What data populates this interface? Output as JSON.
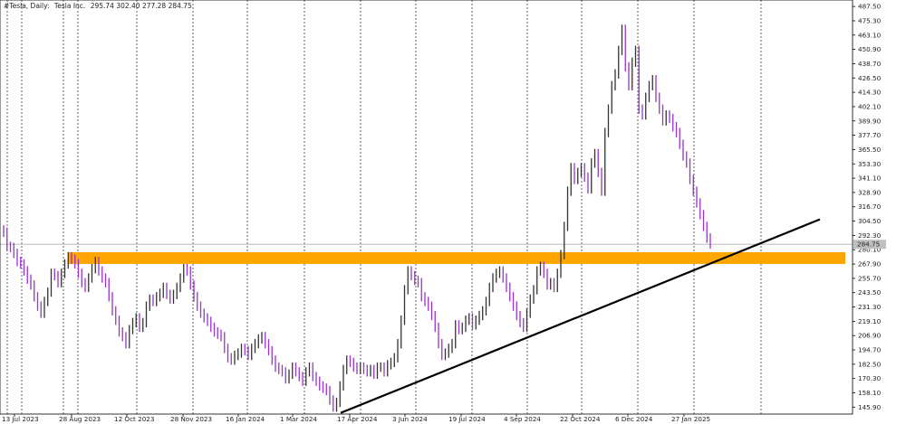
{
  "chart_data": {
    "type": "candlestick",
    "header": {
      "symbol": "#Tesla, Daily:",
      "name": "Tesla Inc.",
      "ohlc": "295.74 302.40 277.28 284.75"
    },
    "price_label": "284.75",
    "x_labels": [
      "13 Jul 2023",
      "28 Aug 2023",
      "12 Oct 2023",
      "28 Nov 2023",
      "16 Jan 2024",
      "1 Mar 2024",
      "17 Apr 2024",
      "3 Jun 2024",
      "19 Jul 2024",
      "4 Sep 2024",
      "22 Oct 2024",
      "6 Dec 2024",
      "27 Jan 2025"
    ],
    "y_ticks": [
      "487.50",
      "475.30",
      "463.10",
      "450.90",
      "438.70",
      "426.50",
      "414.30",
      "402.10",
      "389.90",
      "377.70",
      "365.50",
      "353.30",
      "341.10",
      "328.90",
      "316.70",
      "304.50",
      "292.30",
      "280.10",
      "267.90",
      "255.70",
      "243.50",
      "231.30",
      "219.10",
      "206.90",
      "194.70",
      "182.50",
      "170.30",
      "158.10",
      "145.90"
    ],
    "y_range": [
      140,
      493
    ],
    "current_price": 284.75,
    "support_zone": {
      "low": 268,
      "high": 278
    },
    "trendline": {
      "start": {
        "x": "17 Apr 2024",
        "y": 141
      },
      "end": {
        "x": "25 Feb 2025",
        "y": 306
      }
    },
    "series": [
      {
        "values": [
          295,
          283,
          282,
          277,
          270,
          268,
          262,
          255,
          250,
          240,
          232,
          226,
          236,
          244,
          260,
          258,
          252,
          260,
          268,
          274,
          272,
          268,
          260,
          252,
          248,
          256,
          264,
          270,
          262,
          256,
          252,
          240,
          228,
          220,
          210,
          206,
          200,
          212,
          218,
          222,
          214,
          218,
          232,
          238,
          236,
          240,
          243,
          248,
          242,
          238,
          242,
          248,
          256,
          264,
          262,
          250,
          240,
          232,
          226,
          222,
          219,
          214,
          210,
          208,
          206,
          196,
          188,
          186,
          190,
          192,
          196,
          194,
          190,
          196,
          200,
          204,
          206,
          200,
          194,
          186,
          180,
          178,
          176,
          170,
          174,
          180,
          176,
          172,
          168,
          176,
          180,
          172,
          168,
          164,
          162,
          160,
          152,
          146,
          150,
          164,
          178,
          186,
          184,
          180,
          178,
          180,
          178,
          176,
          178,
          174,
          180,
          180,
          176,
          182,
          184,
          188,
          200,
          220,
          246,
          262,
          258,
          254,
          252,
          240,
          236,
          232,
          224,
          214,
          200,
          190,
          192,
          196,
          200,
          216,
          212,
          214,
          220,
          222,
          216,
          220,
          224,
          228,
          236,
          248,
          256,
          260,
          262,
          256,
          248,
          240,
          232,
          224,
          218,
          214,
          226,
          238,
          246,
          262,
          266,
          260,
          250,
          252,
          248,
          260,
          276,
          300,
          330,
          350,
          340,
          346,
          350,
          342,
          332,
          354,
          362,
          346,
          330,
          380,
          400,
          420,
          430,
          450,
          468,
          436,
          420,
          440,
          450,
          400,
          395,
          410,
          420,
          425,
          410,
          400,
          390,
          395,
          392,
          385,
          380,
          370,
          360,
          354,
          340,
          330,
          320,
          310,
          300,
          290,
          285
        ]
      }
    ]
  }
}
